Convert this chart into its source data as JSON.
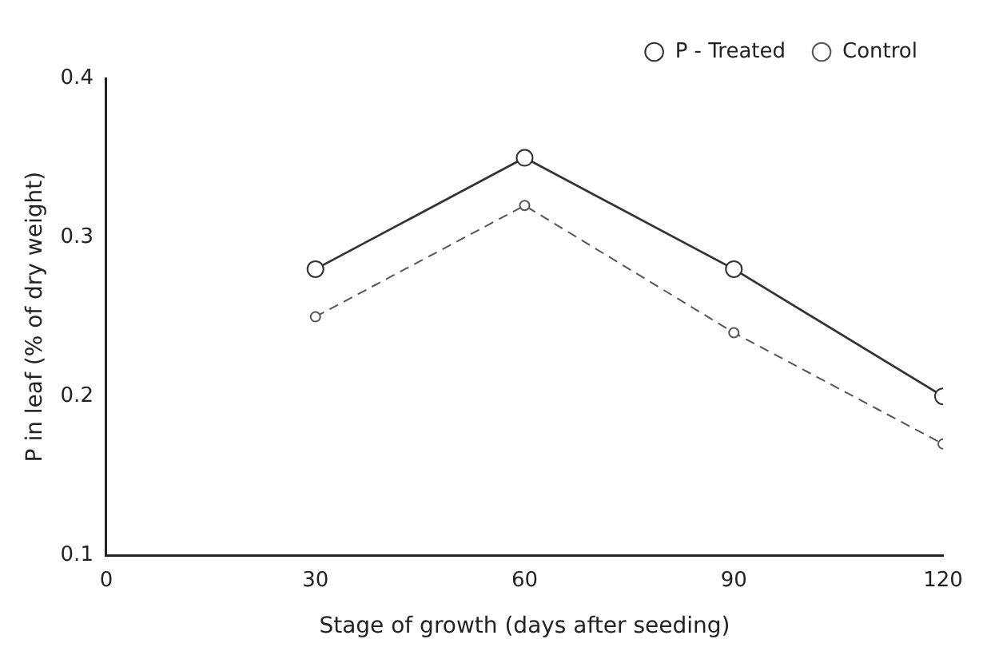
{
  "chart_data": {
    "type": "line",
    "xlabel": "Stage of growth (days after seeding)",
    "ylabel": "P in leaf (% of dry weight)",
    "x": [
      30,
      60,
      90,
      120
    ],
    "series": [
      {
        "name": "P - Treated",
        "color": "#333333",
        "values": [
          0.28,
          0.35,
          0.28,
          0.2
        ],
        "line_style": "solid",
        "marker": "circle"
      },
      {
        "name": "Control",
        "color": "#555555",
        "values": [
          0.25,
          0.32,
          0.24,
          0.17
        ],
        "line_style": "dashed",
        "marker": "circle"
      }
    ],
    "xlim": [
      0,
      120
    ],
    "xticks": [
      0,
      30,
      60,
      90,
      120
    ],
    "ylim": [
      0.1,
      0.4
    ],
    "yticks": [
      0.1,
      0.2,
      0.3,
      0.4
    ],
    "grid": false,
    "legend": "top right"
  }
}
